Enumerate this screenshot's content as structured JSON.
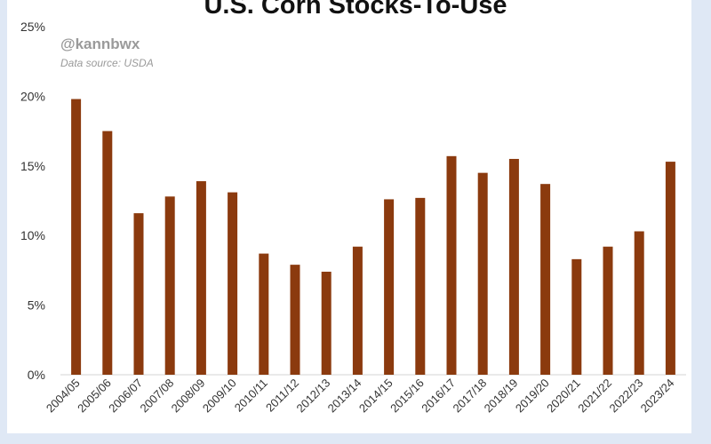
{
  "chart_data": {
    "type": "bar",
    "title": "U.S. Corn Stocks-To-Use",
    "annotations": {
      "handle": "@kannbwx",
      "source": "Data source: USDA"
    },
    "xlabel": "",
    "ylabel": "",
    "ylim": [
      0,
      25
    ],
    "yticks": [
      "0%",
      "5%",
      "10%",
      "15%",
      "20%",
      "25%"
    ],
    "grid": false,
    "bar_color": "#8b3a0e",
    "categories": [
      "2004/05",
      "2005/06",
      "2006/07",
      "2007/08",
      "2008/09",
      "2009/10",
      "2010/11",
      "2011/12",
      "2012/13",
      "2013/14",
      "2014/15",
      "2015/16",
      "2016/17",
      "2017/18",
      "2018/19",
      "2019/20",
      "2020/21",
      "2021/22",
      "2022/23",
      "2023/24"
    ],
    "values": [
      19.8,
      17.5,
      11.6,
      12.8,
      13.9,
      13.1,
      8.7,
      7.9,
      7.4,
      9.2,
      12.6,
      12.7,
      15.7,
      14.5,
      15.5,
      13.7,
      8.3,
      9.2,
      10.3,
      15.3
    ]
  }
}
